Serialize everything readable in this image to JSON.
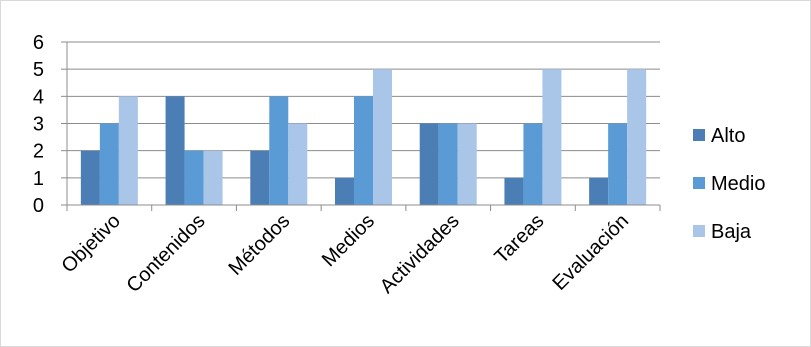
{
  "chart_data": {
    "type": "bar",
    "title": "",
    "xlabel": "",
    "ylabel": "",
    "categories": [
      "Objetivo",
      "Contenidos",
      "Métodos",
      "Medios",
      "Actividades",
      "Tareas",
      "Evaluación"
    ],
    "series": [
      {
        "name": "Alto",
        "color": "#4a7eb4",
        "values": [
          2,
          4,
          2,
          1,
          3,
          1,
          1
        ]
      },
      {
        "name": "Medio",
        "color": "#5b9bd5",
        "values": [
          3,
          2,
          4,
          4,
          3,
          3,
          3
        ]
      },
      {
        "name": "Baja",
        "color": "#a9c5e8",
        "values": [
          4,
          2,
          3,
          5,
          3,
          5,
          5
        ]
      }
    ],
    "ylim": [
      0,
      6
    ],
    "yticks": [
      0,
      1,
      2,
      3,
      4,
      5,
      6
    ],
    "grid": true,
    "legend_position": "right"
  },
  "colors": {
    "gridline": "#8c8c8c",
    "axis": "#8c8c8c",
    "frame_border": "#d9d9d9"
  }
}
